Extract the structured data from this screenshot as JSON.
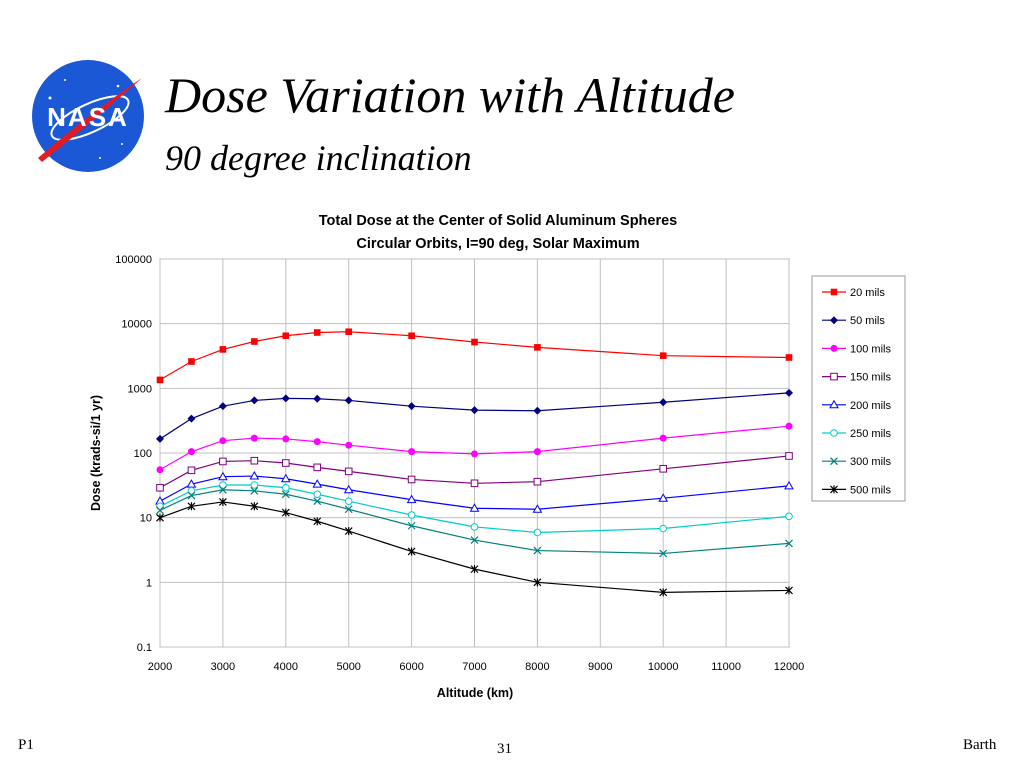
{
  "slide": {
    "title": "Dose Variation with Altitude",
    "subtitle": "90 degree inclination",
    "logo_text": "NASA",
    "footer_left": "P1",
    "page_number": "31",
    "footer_right": "Barth"
  },
  "chart_data": {
    "type": "line",
    "title": "Total Dose at the Center of Solid Aluminum Spheres",
    "subtitle": "Circular Orbits, I=90 deg, Solar Maximum",
    "xlabel": "Altitude (km)",
    "ylabel": "Dose (krads-si/1 yr)",
    "xlim": [
      2000,
      12000
    ],
    "ylim": [
      0.1,
      100000
    ],
    "yscale": "log",
    "grid": true,
    "legend_position": "right",
    "x_ticks": [
      "2000",
      "3000",
      "4000",
      "5000",
      "6000",
      "7000",
      "8000",
      "9000",
      "10000",
      "11000",
      "12000"
    ],
    "y_ticks": [
      "0.1",
      "1",
      "10",
      "100",
      "1000",
      "10000",
      "100000"
    ],
    "x": [
      2000,
      2500,
      3000,
      3500,
      4000,
      4500,
      5000,
      6000,
      7000,
      8000,
      10000,
      12000
    ],
    "series": [
      {
        "name": "20 mils",
        "color": "#ff0000",
        "marker": "square-filled",
        "values": [
          1350,
          2600,
          4000,
          5300,
          6500,
          7300,
          7500,
          6500,
          5200,
          4300,
          3200,
          3000
        ]
      },
      {
        "name": "50 mils",
        "color": "#000080",
        "marker": "diamond-filled",
        "values": [
          165,
          340,
          530,
          650,
          700,
          690,
          650,
          530,
          460,
          450,
          610,
          850
        ]
      },
      {
        "name": "100 mils",
        "color": "#ff00ff",
        "marker": "circle-filled",
        "values": [
          55,
          105,
          155,
          170,
          165,
          150,
          132,
          105,
          97,
          105,
          170,
          260
        ]
      },
      {
        "name": "150 mils",
        "color": "#800080",
        "marker": "square-open",
        "values": [
          29,
          54,
          74,
          76,
          70,
          60,
          52,
          39,
          34,
          36,
          57,
          90
        ]
      },
      {
        "name": "200 mils",
        "color": "#0000ff",
        "marker": "triangle-open",
        "values": [
          18,
          33,
          43,
          44,
          40,
          33,
          27,
          19,
          14,
          13.5,
          20,
          31
        ]
      },
      {
        "name": "250 mils",
        "color": "#00cccc",
        "marker": "circle-open",
        "values": [
          15,
          26,
          32,
          32,
          29,
          23,
          18,
          11,
          7.2,
          5.9,
          6.8,
          10.5
        ]
      },
      {
        "name": "300 mils",
        "color": "#008080",
        "marker": "x",
        "values": [
          13,
          22,
          27,
          26,
          23,
          18,
          13.5,
          7.5,
          4.5,
          3.1,
          2.8,
          4
        ]
      },
      {
        "name": "500 mils",
        "color": "#000000",
        "marker": "star",
        "values": [
          10,
          15,
          17.5,
          15,
          12,
          8.8,
          6.2,
          3,
          1.6,
          1.0,
          0.7,
          0.75
        ]
      }
    ]
  }
}
